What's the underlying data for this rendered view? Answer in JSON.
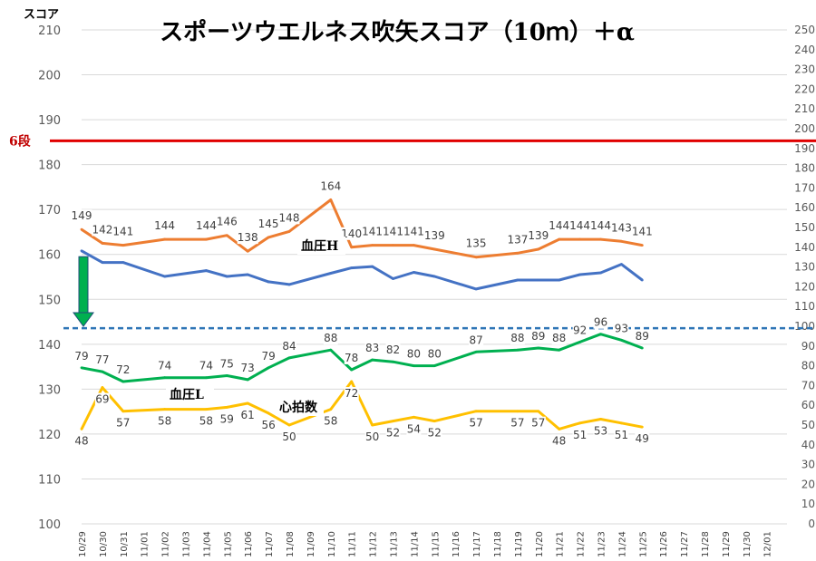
{
  "chart_data": {
    "type": "line",
    "title": "スポーツウエルネス吹矢スコア（10ｍ）＋α",
    "ylabel": "スコア",
    "ylim": [
      100,
      210
    ],
    "y_ticks": [
      100,
      110,
      120,
      130,
      140,
      150,
      160,
      170,
      180,
      190,
      200,
      210
    ],
    "y2lim": [
      0,
      250
    ],
    "y2_ticks": [
      0,
      10,
      20,
      30,
      40,
      50,
      60,
      70,
      80,
      90,
      100,
      110,
      120,
      130,
      140,
      150,
      160,
      170,
      180,
      190,
      200,
      210,
      220,
      230,
      240,
      250
    ],
    "categories": [
      "10/29",
      "10/30",
      "10/31",
      "11/01",
      "11/02",
      "11/03",
      "11/04",
      "11/05",
      "11/06",
      "11/07",
      "11/08",
      "11/09",
      "11/10",
      "11/11",
      "11/12",
      "11/13",
      "11/14",
      "11/15",
      "11/16",
      "11/17",
      "11/18",
      "11/19",
      "11/20",
      "11/21",
      "11/22",
      "11/23",
      "11/24",
      "11/25",
      "11/26",
      "11/27",
      "11/28",
      "11/29",
      "11/30",
      "12/01"
    ],
    "reference_lines": [
      {
        "label": "6段",
        "axis": "left",
        "value": 185.3,
        "color": "#e00000",
        "style": "solid"
      },
      {
        "label": "",
        "axis": "right",
        "value": 99,
        "color": "#2e75b6",
        "style": "dashed"
      }
    ],
    "series": [
      {
        "key": "score",
        "axis": "left",
        "color": "#4472c4",
        "values": [
          160.8,
          158.2,
          158.2,
          null,
          155.1,
          null,
          156.4,
          155.1,
          155.5,
          153.9,
          153.3,
          null,
          155.8,
          157.0,
          157.3,
          154.6,
          156.0,
          155.1,
          null,
          152.3,
          null,
          154.3,
          154.3,
          154.3,
          155.5,
          155.9,
          157.8,
          154.3,
          null,
          null,
          null,
          null,
          null,
          null
        ],
        "labels": [
          null,
          null,
          null,
          null,
          null,
          null,
          null,
          null,
          null,
          null,
          null,
          null,
          null,
          null,
          null,
          null,
          null,
          null,
          null,
          null,
          null,
          null,
          null,
          null,
          null,
          null,
          null,
          null,
          null,
          null,
          null,
          null,
          null,
          null
        ]
      },
      {
        "key": "bp_high",
        "axis": "right",
        "color": "#ed7d31",
        "name": "血圧H",
        "values": [
          149,
          142,
          141,
          null,
          144,
          null,
          144,
          146,
          138,
          145,
          148,
          null,
          164,
          140,
          141,
          141,
          141,
          139,
          null,
          135,
          null,
          137,
          139,
          144,
          144,
          144,
          143,
          141,
          null,
          null,
          null,
          null,
          null,
          null
        ],
        "labels": [
          "149",
          "142",
          "141",
          null,
          "144",
          null,
          "144",
          "146",
          "138",
          "145",
          "148",
          null,
          "164",
          "140",
          "141",
          "141",
          "141",
          "139",
          null,
          "135",
          null,
          "137",
          "139",
          "144",
          "144",
          "144",
          "143",
          "141",
          null,
          null,
          null,
          null,
          null,
          null
        ]
      },
      {
        "key": "bp_low",
        "axis": "right",
        "color": "#00b050",
        "name": "血圧L",
        "values": [
          79,
          77,
          72,
          null,
          74,
          null,
          74,
          75,
          73,
          79,
          84,
          null,
          88,
          78,
          83,
          82,
          80,
          80,
          null,
          87,
          null,
          88,
          89,
          88,
          92,
          96,
          93,
          89,
          null,
          null,
          null,
          null,
          null,
          null
        ],
        "labels": [
          "79",
          "77",
          "72",
          null,
          "74",
          null,
          "74",
          "75",
          "73",
          "79",
          "84",
          null,
          "88",
          "78",
          "83",
          "82",
          "80",
          "80",
          null,
          "87",
          null,
          "88",
          "89",
          "88",
          "92",
          "96",
          "93",
          "89",
          null,
          null,
          null,
          null,
          null,
          null
        ]
      },
      {
        "key": "pulse",
        "axis": "right",
        "color": "#ffc000",
        "name": "心拍数",
        "values": [
          48,
          69,
          57,
          null,
          58,
          null,
          58,
          59,
          61,
          56,
          50,
          null,
          58,
          72,
          50,
          52,
          54,
          52,
          null,
          57,
          null,
          57,
          57,
          48,
          51,
          53,
          51,
          49,
          null,
          null,
          null,
          null,
          null,
          null
        ],
        "labels": [
          "48",
          "69",
          "57",
          null,
          "58",
          null,
          "58",
          "59",
          "61",
          "56",
          "50",
          null,
          "58",
          "72",
          "50",
          "52",
          "54",
          "52",
          null,
          "57",
          null,
          "57",
          "57",
          "48",
          "51",
          "53",
          "51",
          "49",
          null,
          null,
          null,
          null,
          null,
          null
        ]
      }
    ],
    "annotations": [
      "血圧H",
      "血圧L",
      "心拍数"
    ],
    "arrow": {
      "from_value": 159.5,
      "to_value": 144,
      "axis": "left",
      "color": "#00b050"
    }
  }
}
